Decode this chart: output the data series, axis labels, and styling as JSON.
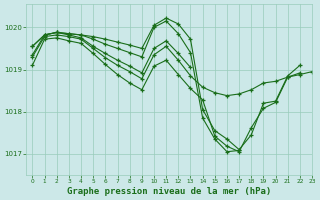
{
  "background_color": "#cce8e8",
  "grid_color": "#99ccbb",
  "line_color": "#1a6e1a",
  "marker": "+",
  "title": "Graphe pression niveau de la mer (hPa)",
  "title_fontsize": 6.5,
  "title_color": "#1a6e1a",
  "xlim": [
    -0.5,
    23
  ],
  "ylim": [
    1016.5,
    1020.55
  ],
  "yticks": [
    1017,
    1018,
    1019,
    1020
  ],
  "xticks": [
    0,
    1,
    2,
    3,
    4,
    5,
    6,
    7,
    8,
    9,
    10,
    11,
    12,
    13,
    14,
    15,
    16,
    17,
    18,
    19,
    20,
    21,
    22,
    23
  ],
  "series": [
    {
      "x": [
        0,
        1,
        2,
        3,
        4,
        5,
        6,
        7,
        8,
        9,
        10,
        11,
        12,
        13,
        14,
        15,
        16,
        17,
        18,
        19,
        20,
        21,
        22
      ],
      "y": [
        1019.55,
        1019.82,
        1019.88,
        1019.85,
        1019.82,
        1019.78,
        1019.72,
        1019.65,
        1019.58,
        1019.5,
        1020.05,
        1020.22,
        1020.08,
        1019.72,
        1018.05,
        1017.55,
        1017.35,
        1017.1,
        1017.45,
        1018.2,
        1018.25,
        1018.85,
        1019.1
      ]
    },
    {
      "x": [
        0,
        1,
        2,
        3,
        4,
        5,
        6,
        7,
        8,
        9,
        10,
        11,
        12,
        13,
        14,
        15,
        16,
        17
      ],
      "y": [
        1019.55,
        1019.82,
        1019.88,
        1019.85,
        1019.82,
        1019.72,
        1019.6,
        1019.5,
        1019.4,
        1019.3,
        1020.0,
        1020.15,
        1019.85,
        1019.4,
        1017.85,
        1017.35,
        1017.05,
        1017.08
      ]
    },
    {
      "x": [
        0,
        1,
        2,
        3,
        4,
        5,
        6,
        7,
        8,
        9,
        10,
        11,
        12,
        13
      ],
      "y": [
        1019.35,
        1019.82,
        1019.88,
        1019.82,
        1019.75,
        1019.55,
        1019.38,
        1019.22,
        1019.08,
        1018.92,
        1019.5,
        1019.68,
        1019.38,
        1019.05
      ]
    },
    {
      "x": [
        0,
        1,
        2,
        3,
        4,
        5,
        6,
        7,
        8,
        9,
        10,
        11,
        12,
        13,
        14,
        15,
        16,
        17,
        18,
        19,
        20,
        21,
        22,
        23
      ],
      "y": [
        1019.3,
        1019.78,
        1019.82,
        1019.78,
        1019.72,
        1019.5,
        1019.28,
        1019.1,
        1018.95,
        1018.78,
        1019.35,
        1019.55,
        1019.22,
        1018.85,
        1018.58,
        1018.45,
        1018.38,
        1018.42,
        1018.52,
        1018.68,
        1018.72,
        1018.82,
        1018.88,
        1018.95
      ]
    },
    {
      "x": [
        0,
        1,
        2,
        3,
        4,
        5,
        6,
        7,
        8,
        9,
        10,
        11,
        12,
        13,
        14,
        15,
        16,
        17,
        18,
        19,
        20,
        21,
        22
      ],
      "y": [
        1019.1,
        1019.72,
        1019.75,
        1019.68,
        1019.62,
        1019.38,
        1019.12,
        1018.88,
        1018.68,
        1018.52,
        1019.08,
        1019.22,
        1018.88,
        1018.55,
        1018.28,
        1017.42,
        1017.18,
        1017.05,
        1017.62,
        1018.08,
        1018.22,
        1018.82,
        1018.92
      ]
    }
  ]
}
